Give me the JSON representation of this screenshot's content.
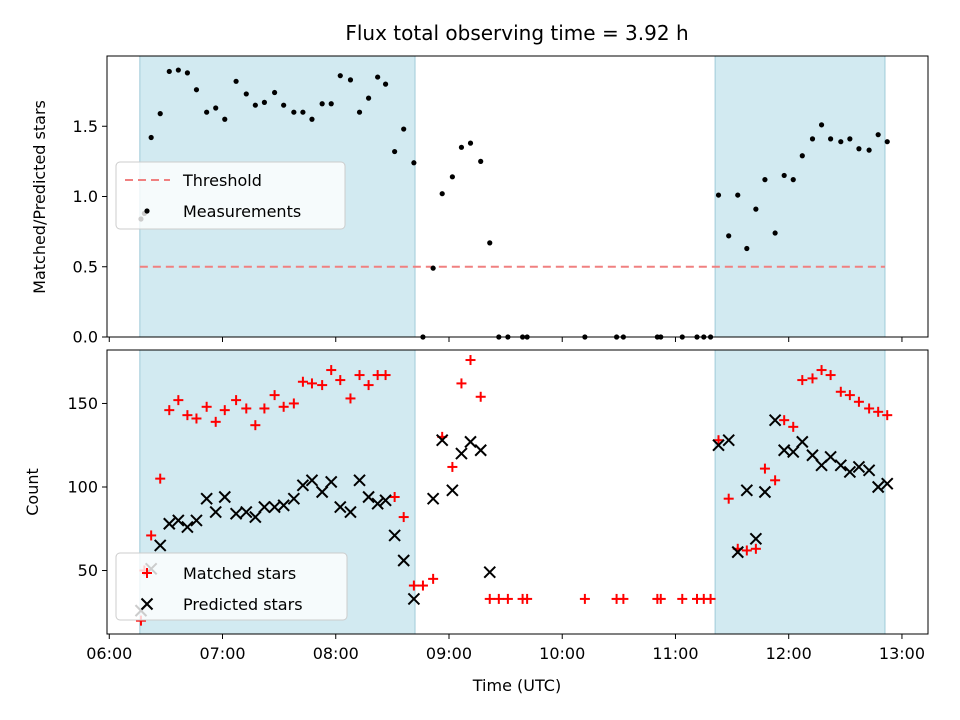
{
  "chart_data": {
    "type": "scatter",
    "title": "Flux total observing time = 3.92 h",
    "xlabel": "Time (UTC)",
    "x_ticks": [
      "06:00",
      "07:00",
      "08:00",
      "09:00",
      "10:00",
      "11:00",
      "12:00",
      "13:00"
    ],
    "x_range_hours": [
      5.98,
      13.23
    ],
    "shaded_intervals_hours": [
      [
        6.27,
        8.7
      ],
      [
        11.35,
        12.85
      ]
    ],
    "shade_color": "#add8e6",
    "top": {
      "ylabel": "Matched/Predicted stars",
      "ylim": [
        0,
        2.0
      ],
      "y_ticks": [
        "0.0",
        "0.5",
        "1.0",
        "1.5"
      ],
      "threshold": {
        "name": "Threshold",
        "value": 0.5,
        "color": "#f08080"
      },
      "series": [
        {
          "name": "Measurements",
          "color": "#000000",
          "points": [
            [
              6.28,
              0.84
            ],
            [
              6.31,
              0.88
            ],
            [
              6.37,
              1.42
            ],
            [
              6.45,
              1.59
            ],
            [
              6.53,
              1.89
            ],
            [
              6.61,
              1.9
            ],
            [
              6.69,
              1.88
            ],
            [
              6.77,
              1.76
            ],
            [
              6.86,
              1.6
            ],
            [
              6.94,
              1.63
            ],
            [
              7.02,
              1.55
            ],
            [
              7.12,
              1.82
            ],
            [
              7.21,
              1.73
            ],
            [
              7.29,
              1.65
            ],
            [
              7.37,
              1.67
            ],
            [
              7.46,
              1.74
            ],
            [
              7.54,
              1.65
            ],
            [
              7.63,
              1.6
            ],
            [
              7.71,
              1.6
            ],
            [
              7.79,
              1.55
            ],
            [
              7.88,
              1.66
            ],
            [
              7.96,
              1.66
            ],
            [
              8.04,
              1.86
            ],
            [
              8.13,
              1.83
            ],
            [
              8.21,
              1.6
            ],
            [
              8.29,
              1.7
            ],
            [
              8.37,
              1.85
            ],
            [
              8.44,
              1.8
            ],
            [
              8.52,
              1.32
            ],
            [
              8.6,
              1.48
            ],
            [
              8.69,
              1.24
            ],
            [
              8.77,
              0.0
            ],
            [
              8.86,
              0.49
            ],
            [
              8.94,
              1.02
            ],
            [
              9.03,
              1.14
            ],
            [
              9.11,
              1.35
            ],
            [
              9.19,
              1.38
            ],
            [
              9.28,
              1.25
            ],
            [
              9.36,
              0.67
            ],
            [
              9.44,
              0.0
            ],
            [
              9.52,
              0.0
            ],
            [
              9.65,
              0.0
            ],
            [
              9.69,
              0.0
            ],
            [
              10.2,
              0.0
            ],
            [
              10.48,
              0.0
            ],
            [
              10.54,
              0.0
            ],
            [
              10.84,
              0.0
            ],
            [
              10.87,
              0.0
            ],
            [
              11.06,
              0.0
            ],
            [
              11.19,
              0.0
            ],
            [
              11.25,
              0.0
            ],
            [
              11.31,
              0.0
            ],
            [
              11.38,
              1.01
            ],
            [
              11.47,
              0.72
            ],
            [
              11.55,
              1.01
            ],
            [
              11.63,
              0.63
            ],
            [
              11.71,
              0.91
            ],
            [
              11.79,
              1.12
            ],
            [
              11.88,
              0.74
            ],
            [
              11.96,
              1.15
            ],
            [
              12.04,
              1.12
            ],
            [
              12.12,
              1.29
            ],
            [
              12.21,
              1.41
            ],
            [
              12.29,
              1.51
            ],
            [
              12.37,
              1.41
            ],
            [
              12.46,
              1.39
            ],
            [
              12.54,
              1.41
            ],
            [
              12.62,
              1.34
            ],
            [
              12.71,
              1.33
            ],
            [
              12.79,
              1.44
            ],
            [
              12.87,
              1.39
            ]
          ]
        }
      ]
    },
    "bottom": {
      "ylabel": "Count",
      "ylim": [
        12,
        182
      ],
      "y_ticks": [
        "50",
        "100",
        "150"
      ],
      "series": [
        {
          "name": "Matched stars",
          "marker": "plus",
          "color": "#ff0000",
          "points": [
            [
              6.28,
              20
            ],
            [
              6.31,
              50
            ],
            [
              6.37,
              71
            ],
            [
              6.45,
              105
            ],
            [
              6.53,
              146
            ],
            [
              6.61,
              152
            ],
            [
              6.69,
              143
            ],
            [
              6.77,
              141
            ],
            [
              6.86,
              148
            ],
            [
              6.94,
              139
            ],
            [
              7.02,
              146
            ],
            [
              7.12,
              152
            ],
            [
              7.21,
              147
            ],
            [
              7.29,
              137
            ],
            [
              7.37,
              147
            ],
            [
              7.46,
              155
            ],
            [
              7.54,
              148
            ],
            [
              7.63,
              150
            ],
            [
              7.71,
              163
            ],
            [
              7.79,
              162
            ],
            [
              7.88,
              161
            ],
            [
              7.96,
              170
            ],
            [
              8.04,
              164
            ],
            [
              8.13,
              153
            ],
            [
              8.21,
              167
            ],
            [
              8.29,
              161
            ],
            [
              8.37,
              167
            ],
            [
              8.44,
              167
            ],
            [
              8.52,
              94
            ],
            [
              8.6,
              82
            ],
            [
              8.69,
              41
            ],
            [
              8.77,
              41
            ],
            [
              8.86,
              45
            ],
            [
              8.94,
              130
            ],
            [
              9.03,
              112
            ],
            [
              9.11,
              162
            ],
            [
              9.19,
              176
            ],
            [
              9.28,
              154
            ],
            [
              9.36,
              33
            ],
            [
              9.44,
              33
            ],
            [
              9.52,
              33
            ],
            [
              9.65,
              33
            ],
            [
              9.69,
              33
            ],
            [
              10.2,
              33
            ],
            [
              10.48,
              33
            ],
            [
              10.54,
              33
            ],
            [
              10.84,
              33
            ],
            [
              10.87,
              33
            ],
            [
              11.06,
              33
            ],
            [
              11.19,
              33
            ],
            [
              11.25,
              33
            ],
            [
              11.31,
              33
            ],
            [
              11.38,
              128
            ],
            [
              11.47,
              93
            ],
            [
              11.55,
              63
            ],
            [
              11.63,
              62
            ],
            [
              11.71,
              63
            ],
            [
              11.79,
              111
            ],
            [
              11.88,
              104
            ],
            [
              11.96,
              140
            ],
            [
              12.04,
              136
            ],
            [
              12.12,
              164
            ],
            [
              12.21,
              165
            ],
            [
              12.29,
              170
            ],
            [
              12.37,
              167
            ],
            [
              12.46,
              157
            ],
            [
              12.54,
              155
            ],
            [
              12.62,
              151
            ],
            [
              12.71,
              147
            ],
            [
              12.79,
              145
            ],
            [
              12.87,
              143
            ]
          ]
        },
        {
          "name": "Predicted stars",
          "marker": "x",
          "color": "#000000",
          "points": [
            [
              6.28,
              26
            ],
            [
              6.37,
              51
            ],
            [
              6.45,
              65
            ],
            [
              6.53,
              78
            ],
            [
              6.61,
              80
            ],
            [
              6.69,
              76
            ],
            [
              6.77,
              80
            ],
            [
              6.86,
              93
            ],
            [
              6.94,
              85
            ],
            [
              7.02,
              94
            ],
            [
              7.12,
              84
            ],
            [
              7.21,
              85
            ],
            [
              7.29,
              82
            ],
            [
              7.37,
              88
            ],
            [
              7.46,
              88
            ],
            [
              7.54,
              89
            ],
            [
              7.63,
              93
            ],
            [
              7.71,
              101
            ],
            [
              7.79,
              104
            ],
            [
              7.88,
              97
            ],
            [
              7.96,
              103
            ],
            [
              8.04,
              88
            ],
            [
              8.13,
              85
            ],
            [
              8.21,
              104
            ],
            [
              8.29,
              94
            ],
            [
              8.37,
              90
            ],
            [
              8.44,
              92
            ],
            [
              8.52,
              71
            ],
            [
              8.6,
              56
            ],
            [
              8.69,
              33
            ],
            [
              8.86,
              93
            ],
            [
              8.94,
              128
            ],
            [
              9.03,
              98
            ],
            [
              9.11,
              120
            ],
            [
              9.19,
              127
            ],
            [
              9.28,
              122
            ],
            [
              9.36,
              49
            ],
            [
              11.38,
              125
            ],
            [
              11.47,
              128
            ],
            [
              11.55,
              61
            ],
            [
              11.63,
              98
            ],
            [
              11.71,
              69
            ],
            [
              11.79,
              97
            ],
            [
              11.88,
              140
            ],
            [
              11.96,
              122
            ],
            [
              12.04,
              121
            ],
            [
              12.12,
              127
            ],
            [
              12.21,
              119
            ],
            [
              12.29,
              113
            ],
            [
              12.37,
              118
            ],
            [
              12.46,
              113
            ],
            [
              12.54,
              109
            ],
            [
              12.62,
              112
            ],
            [
              12.71,
              110
            ],
            [
              12.79,
              100
            ],
            [
              12.87,
              102
            ]
          ]
        }
      ]
    }
  }
}
